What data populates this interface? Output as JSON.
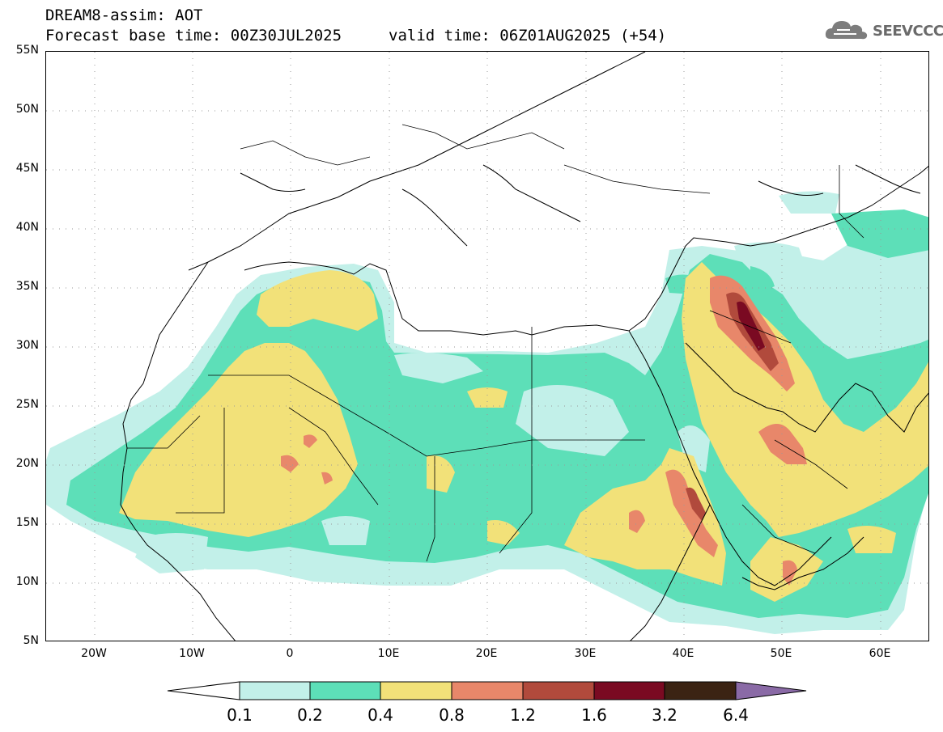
{
  "header": {
    "title": "DREAM8-assim: AOT",
    "base_time": "Forecast base time: 00Z30JUL2025",
    "valid_time": "valid time: 06Z01AUG2025 (+54)"
  },
  "logo": {
    "text": "SEEVCCC",
    "icon": "cloud-icon"
  },
  "axes": {
    "y_labels": [
      "55N",
      "50N",
      "45N",
      "40N",
      "35N",
      "30N",
      "25N",
      "20N",
      "15N",
      "10N",
      "5N"
    ],
    "x_labels": [
      "20W",
      "10W",
      "0",
      "10E",
      "20E",
      "30E",
      "40E",
      "50E",
      "60E"
    ]
  },
  "legend": {
    "labels": [
      "0.1",
      "0.2",
      "0.4",
      "0.8",
      "1.2",
      "1.6",
      "3.2",
      "6.4"
    ],
    "colors": {
      "lt_0_1": "#ffffff",
      "c_0_1_0_2": "#c2f0e9",
      "c_0_2_0_4": "#5ddfb8",
      "c_0_4_0_8": "#f2e179",
      "c_0_8_1_2": "#e8876a",
      "c_1_2_1_6": "#b14a3c",
      "c_1_6_3_2": "#7a0a22",
      "c_3_2_6_4": "#3b2313",
      "gt_6_4": "#8a6aa6"
    }
  }
}
